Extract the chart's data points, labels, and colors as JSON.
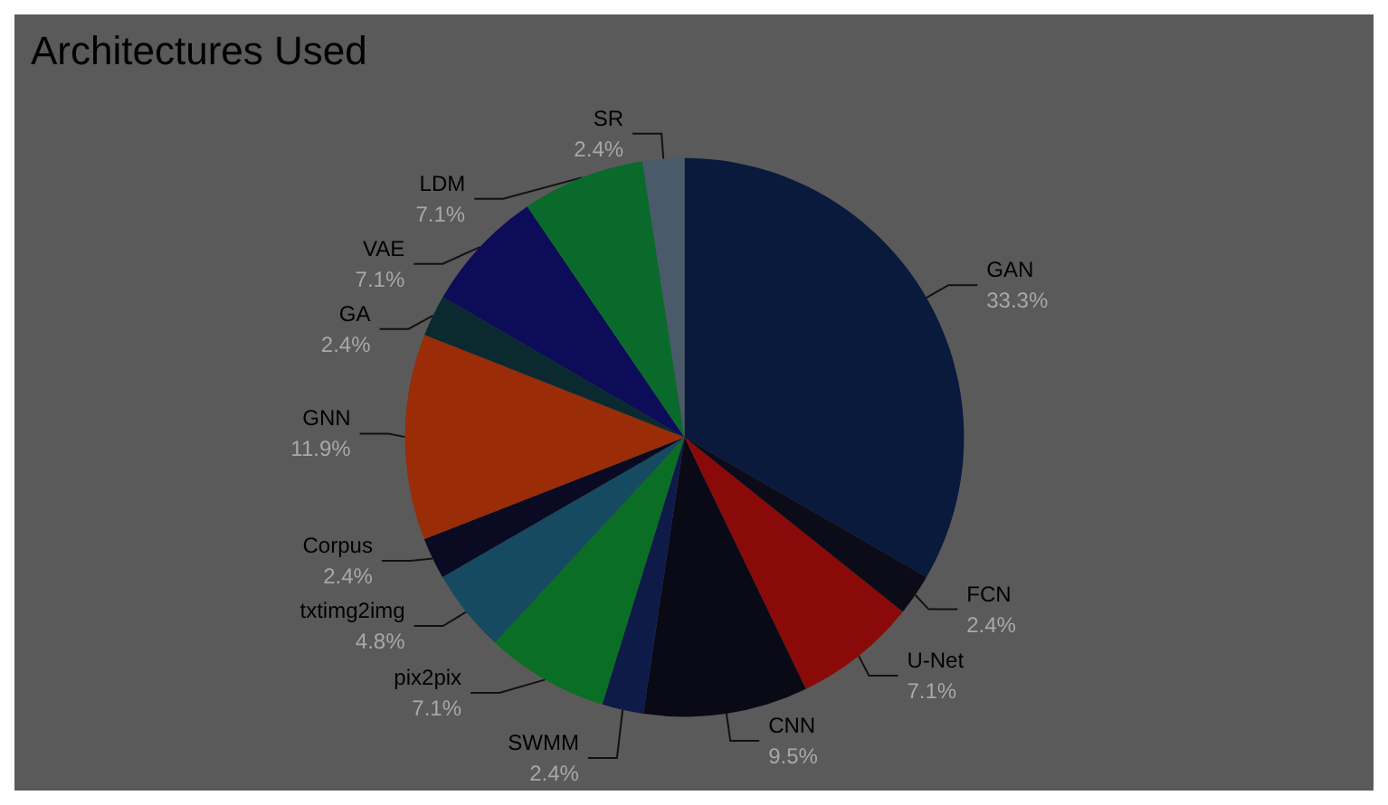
{
  "chart_data": {
    "type": "pie",
    "title": "Architectures Used",
    "categories": [
      "GAN",
      "FCN",
      "U-Net",
      "CNN",
      "SWMM",
      "pix2pix",
      "txtimg2img",
      "Corpus",
      "GNN",
      "GA",
      "VAE",
      "LDM",
      "SR"
    ],
    "values": [
      33.3,
      2.4,
      7.1,
      9.5,
      2.4,
      7.1,
      4.8,
      2.4,
      11.9,
      2.4,
      7.1,
      7.1,
      2.4
    ],
    "colors": [
      "#0a1a3c",
      "#0c0c18",
      "#8a0a0a",
      "#0a0a16",
      "#0e1a48",
      "#0a6e24",
      "#154a60",
      "#0a0a22",
      "#9a2c08",
      "#0a2a30",
      "#0c0c58",
      "#0a6a2c",
      "#4a5a6a"
    ],
    "value_labels": [
      "33.3%",
      "2.4%",
      "7.1%",
      "9.5%",
      "2.4%",
      "7.1%",
      "4.8%",
      "2.4%",
      "11.9%",
      "2.4%",
      "7.1%",
      "7.1%",
      "2.4%"
    ],
    "legend": false
  }
}
